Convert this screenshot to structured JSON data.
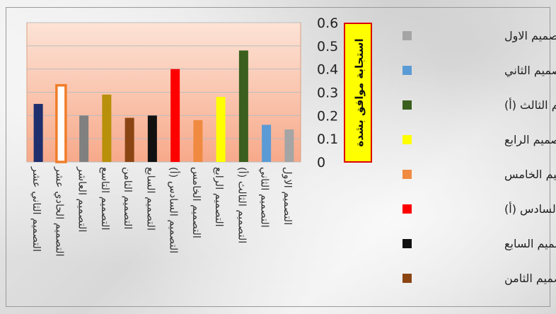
{
  "chart_data": {
    "type": "bar",
    "ylabel": "استجابة موافق بشدة",
    "ylim": [
      0,
      0.6
    ],
    "yticks": [
      "0",
      "0.1",
      "0.2",
      "0.3",
      "0.4",
      "0.5",
      "0.6"
    ],
    "grid": true,
    "legend_position": "right",
    "categories": [
      "التصميم الثاني عشر",
      "التصميم الحادي عشر",
      "التصميم العاشر",
      "التصميم التاسع",
      "التصميم الثامن",
      "التصميم السابع",
      "التصميم السادس (أ)",
      "التصميم الخامس",
      "التصميم الرابع",
      "التصميم الثالث (أ)",
      "التصميم الثاني",
      "التصميم الاول"
    ],
    "values": [
      0.25,
      0.33,
      0.2,
      0.29,
      0.19,
      0.2,
      0.4,
      0.18,
      0.28,
      0.48,
      0.16,
      0.14
    ],
    "colors": [
      "#1f2f6e",
      "#ffffff",
      "#808080",
      "#b8900a",
      "#8b4513",
      "#111111",
      "#ff0000",
      "#f08a40",
      "#ffff00",
      "#3a5f1e",
      "#5b9bd5",
      "#a5a5a5"
    ],
    "outline_colors": [
      "none",
      "#f07d2a",
      "none",
      "none",
      "none",
      "none",
      "none",
      "none",
      "none",
      "none",
      "none",
      "none"
    ],
    "legend": [
      {
        "label": "التصميم الاول",
        "color": "#a5a5a5"
      },
      {
        "label": "التصميم الثاني",
        "color": "#5b9bd5"
      },
      {
        "label": "التصميم الثالث (أ)",
        "color": "#3a5f1e"
      },
      {
        "label": "التصميم الرابع",
        "color": "#ffff00"
      },
      {
        "label": "التصميم الخامس",
        "color": "#f08a40"
      },
      {
        "label": "التصميم السادس (أ)",
        "color": "#ff0000"
      },
      {
        "label": "التصميم السابع",
        "color": "#111111"
      },
      {
        "label": "التصميم الثامن",
        "color": "#8b4513"
      }
    ]
  }
}
